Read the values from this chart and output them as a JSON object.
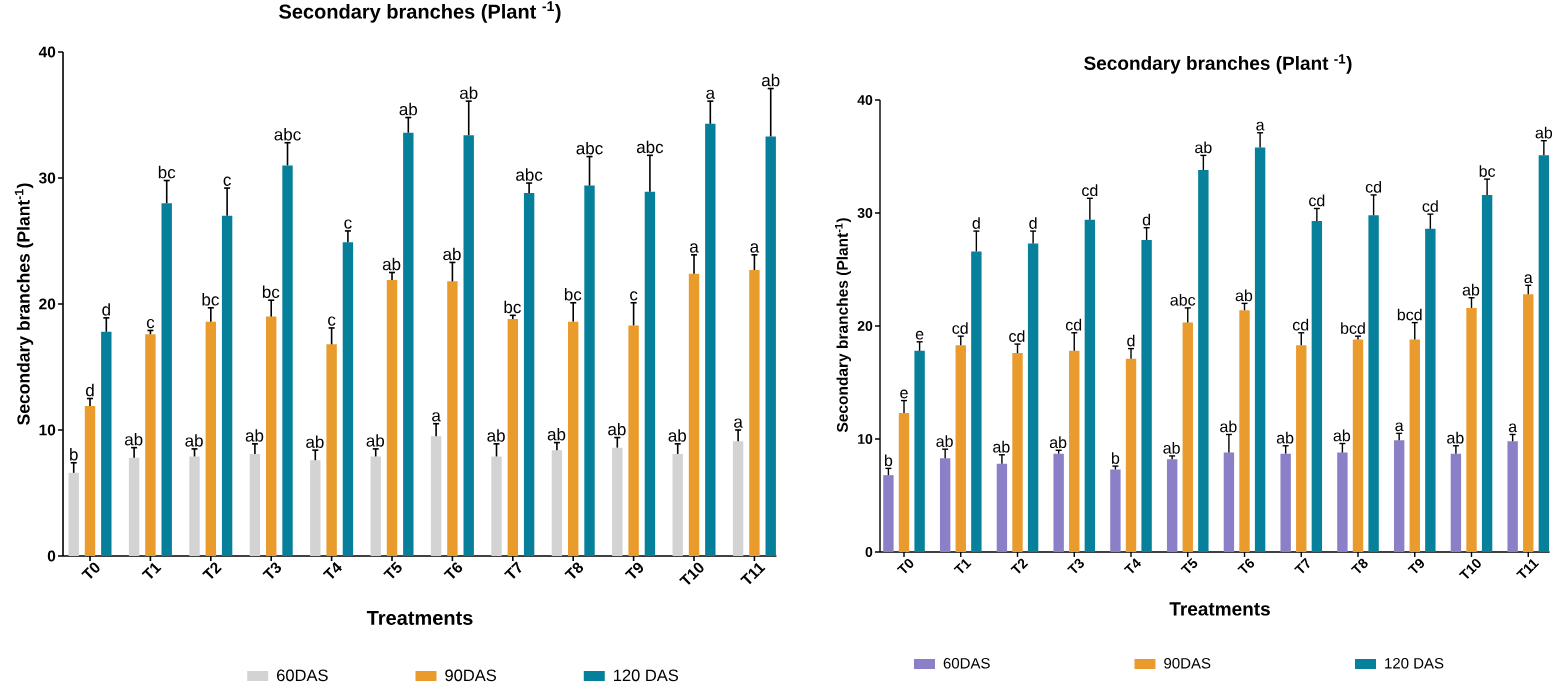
{
  "chart_data": [
    {
      "type": "bar",
      "title": "Secondary branches (Plant $^{-1}$)",
      "xlabel": "Treatments",
      "ylabel": "Secondary branches (Plant$^{-1}$)",
      "categories": [
        "T0",
        "T1",
        "T2",
        "T3",
        "T4",
        "T5",
        "T6",
        "T7",
        "T8",
        "T9",
        "T10",
        "T11"
      ],
      "ylim": [
        0,
        40
      ],
      "yticks": [
        0,
        10,
        20,
        30,
        40
      ],
      "legend": "bottom",
      "series": [
        {
          "name": "60DAS",
          "color": "#d3d3d3",
          "values": [
            6.6,
            7.8,
            7.9,
            8.1,
            7.6,
            7.9,
            9.5,
            7.9,
            8.4,
            8.6,
            8.1,
            9.1
          ],
          "errors": [
            [
              6.6,
              7.4
            ],
            [
              7.8,
              8.6
            ],
            [
              7.9,
              8.5
            ],
            [
              8.1,
              8.9
            ],
            [
              7.6,
              8.4
            ],
            [
              7.9,
              8.5
            ],
            [
              9.5,
              10.5
            ],
            [
              7.9,
              8.9
            ],
            [
              8.4,
              9.0
            ],
            [
              8.6,
              9.4
            ],
            [
              8.1,
              8.9
            ],
            [
              9.1,
              10.0
            ]
          ],
          "value_labels": [
            "b",
            "ab",
            "ab",
            "ab",
            "ab",
            "ab",
            "a",
            "ab",
            "ab",
            "ab",
            "ab",
            "a"
          ]
        },
        {
          "name": "90DAS",
          "color": "#e99b2c",
          "values": [
            11.9,
            17.6,
            18.6,
            19.0,
            16.8,
            21.9,
            21.8,
            18.8,
            18.6,
            18.3,
            22.4,
            22.7
          ],
          "errors": [
            [
              11.9,
              12.5
            ],
            [
              17.6,
              17.9
            ],
            [
              18.6,
              19.7
            ],
            [
              19.0,
              20.3
            ],
            [
              16.8,
              18.1
            ],
            [
              21.9,
              22.5
            ],
            [
              21.8,
              23.3
            ],
            [
              18.8,
              19.1
            ],
            [
              18.6,
              20.1
            ],
            [
              18.3,
              20.1
            ],
            [
              22.4,
              23.9
            ],
            [
              22.7,
              23.9
            ]
          ],
          "value_labels": [
            "d",
            "c",
            "bc",
            "bc",
            "c",
            "ab",
            "ab",
            "bc",
            "bc",
            "c",
            "a",
            "a"
          ]
        },
        {
          "name": "120 DAS",
          "color": "#06809a",
          "values": [
            17.8,
            28.0,
            27.0,
            31.0,
            24.9,
            33.6,
            33.4,
            28.8,
            29.4,
            28.9,
            34.3,
            33.3
          ],
          "errors": [
            [
              17.8,
              18.9
            ],
            [
              28.0,
              29.8
            ],
            [
              27.0,
              29.2
            ],
            [
              31.0,
              32.8
            ],
            [
              24.9,
              25.8
            ],
            [
              33.6,
              34.8
            ],
            [
              33.4,
              36.1
            ],
            [
              28.8,
              29.6
            ],
            [
              29.4,
              31.7
            ],
            [
              28.9,
              31.8
            ],
            [
              34.3,
              36.1
            ],
            [
              33.3,
              37.1
            ]
          ],
          "value_labels": [
            "d",
            "bc",
            "c",
            "abc",
            "c",
            "ab",
            "ab",
            "abc",
            "abc",
            "abc",
            "a",
            "ab"
          ]
        }
      ]
    },
    {
      "type": "bar",
      "title": "Secondary branches (Plant $^{-1}$)",
      "xlabel": "Treatments",
      "ylabel": "Secondary branches (Plant$^{-1}$)",
      "categories": [
        "T0",
        "T1",
        "T2",
        "T3",
        "T4",
        "T5",
        "T6",
        "T7",
        "T8",
        "T9",
        "T10",
        "T11"
      ],
      "ylim": [
        0,
        40
      ],
      "yticks": [
        0,
        10,
        20,
        30,
        40
      ],
      "legend": "bottom",
      "series": [
        {
          "name": "60DAS",
          "color": "#8b7fc7",
          "values": [
            6.8,
            8.3,
            7.8,
            8.7,
            7.3,
            8.2,
            8.8,
            8.7,
            8.8,
            9.9,
            8.7,
            9.8
          ],
          "errors": [
            [
              6.8,
              7.4
            ],
            [
              8.3,
              9.1
            ],
            [
              7.8,
              8.6
            ],
            [
              8.7,
              9.0
            ],
            [
              7.3,
              7.6
            ],
            [
              8.2,
              8.5
            ],
            [
              8.8,
              10.4
            ],
            [
              8.7,
              9.4
            ],
            [
              8.8,
              9.6
            ],
            [
              9.9,
              10.5
            ],
            [
              8.7,
              9.4
            ],
            [
              9.8,
              10.4
            ]
          ],
          "value_labels": [
            "b",
            "ab",
            "ab",
            "ab",
            "b",
            "ab",
            "ab",
            "ab",
            "ab",
            "a",
            "ab",
            "a"
          ]
        },
        {
          "name": "90DAS",
          "color": "#ea9b2d",
          "values": [
            12.3,
            18.3,
            17.6,
            17.8,
            17.1,
            20.3,
            21.4,
            18.3,
            18.8,
            18.8,
            21.6,
            22.8
          ],
          "errors": [
            [
              12.3,
              13.4
            ],
            [
              18.3,
              19.1
            ],
            [
              17.6,
              18.4
            ],
            [
              17.8,
              19.4
            ],
            [
              17.1,
              18.0
            ],
            [
              20.3,
              21.6
            ],
            [
              21.4,
              22.0
            ],
            [
              18.3,
              19.4
            ],
            [
              18.8,
              19.1
            ],
            [
              18.8,
              20.3
            ],
            [
              21.6,
              22.5
            ],
            [
              22.8,
              23.6
            ]
          ],
          "value_labels": [
            "e",
            "cd",
            "cd",
            "cd",
            "d",
            "abc",
            "ab",
            "cd",
            "bcd",
            "bcd",
            "ab",
            "a"
          ]
        },
        {
          "name": "120 DAS",
          "color": "#07819b",
          "values": [
            17.8,
            26.6,
            27.3,
            29.4,
            27.6,
            33.8,
            35.8,
            29.3,
            29.8,
            28.6,
            31.6,
            35.1
          ],
          "errors": [
            [
              17.8,
              18.6
            ],
            [
              26.6,
              28.4
            ],
            [
              27.3,
              28.4
            ],
            [
              29.4,
              31.3
            ],
            [
              27.6,
              28.7
            ],
            [
              33.8,
              35.1
            ],
            [
              35.8,
              37.1
            ],
            [
              29.3,
              30.4
            ],
            [
              29.8,
              31.6
            ],
            [
              28.6,
              29.9
            ],
            [
              31.6,
              33.0
            ],
            [
              35.1,
              36.4
            ]
          ],
          "value_labels": [
            "e",
            "d",
            "d",
            "cd",
            "d",
            "ab",
            "a",
            "cd",
            "cd",
            "cd",
            "bc",
            "ab"
          ]
        }
      ]
    }
  ]
}
